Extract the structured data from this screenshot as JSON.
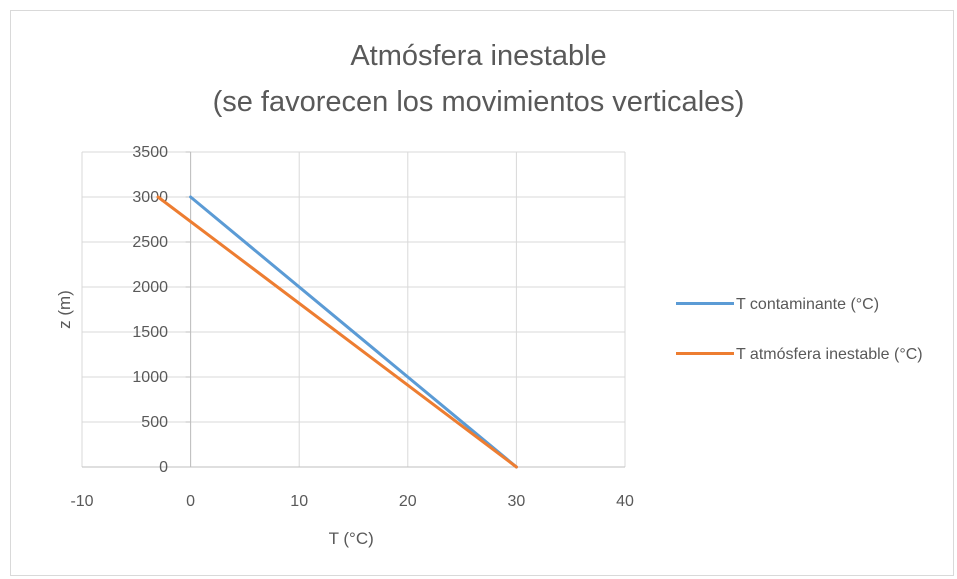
{
  "chart_data": {
    "type": "line",
    "title": "Atmósfera inestable",
    "subtitle": "(se favorecen los movimientos verticales)",
    "xlabel": "T (°C)",
    "ylabel": "z (m)",
    "xlim": [
      -10,
      40
    ],
    "ylim": [
      0,
      3500
    ],
    "x_ticks": [
      "-10",
      "0",
      "10",
      "20",
      "30",
      "40"
    ],
    "y_ticks": [
      "0",
      "500",
      "1000",
      "1500",
      "2000",
      "2500",
      "3000",
      "3500"
    ],
    "grid": true,
    "legend_position": "right",
    "series": [
      {
        "name": "T contaminante (°C)",
        "color": "#5b9bd5",
        "points": [
          [
            30,
            0
          ],
          [
            0,
            3000
          ]
        ]
      },
      {
        "name": "T atmósfera inestable (°C)",
        "color": "#ed7d31",
        "points": [
          [
            30,
            0
          ],
          [
            -3,
            3000
          ]
        ]
      }
    ]
  }
}
